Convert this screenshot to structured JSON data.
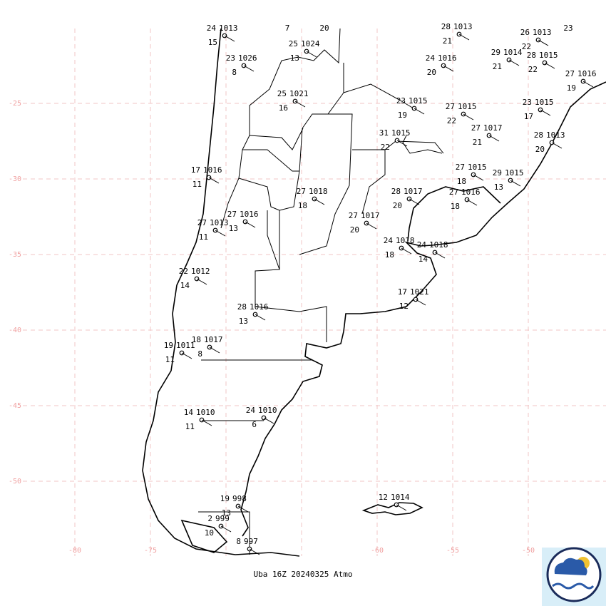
{
  "map": {
    "lat_labels": [
      -25,
      -30,
      -35,
      -40,
      -45,
      -50
    ],
    "lon_labels": [
      -80,
      -75,
      -60,
      -55,
      -50
    ],
    "footer": "Uba 16Z 20240325 Atmo",
    "stations": [
      {
        "t": "24",
        "p": "1013",
        "d": "15"
      },
      {
        "t": "23",
        "p": "1026",
        "d": "8"
      },
      {
        "t": "20"
      },
      {
        "t": "7"
      },
      {
        "t": "25",
        "p": "1024",
        "d": "13"
      },
      {
        "t": "25",
        "p": "1021",
        "d": "16"
      },
      {
        "t": "28",
        "p": "1013",
        "d": "21"
      },
      {
        "t": "24",
        "p": "1016",
        "d": "20"
      },
      {
        "t": "29",
        "p": "1014",
        "d": "21"
      },
      {
        "t": "26",
        "p": "1013",
        "d": "22"
      },
      {
        "t": "23"
      },
      {
        "t": "28",
        "p": "1015",
        "d": "22"
      },
      {
        "t": "27",
        "p": "1016",
        "d": "19"
      },
      {
        "t": "23",
        "p": "1015",
        "d": "19"
      },
      {
        "t": "27",
        "p": "1015",
        "d": "22"
      },
      {
        "t": "23",
        "p": "1015",
        "d": "17"
      },
      {
        "t": "31",
        "p": "1015",
        "d": "22"
      },
      {
        "t": "27",
        "p": "1017",
        "d": "21"
      },
      {
        "t": "28",
        "p": "1013",
        "d": "20"
      },
      {
        "t": "17",
        "p": "1016",
        "d": "11"
      },
      {
        "t": "27",
        "p": "1015",
        "d": "18"
      },
      {
        "t": "29",
        "p": "1015",
        "d": "13"
      },
      {
        "t": "27",
        "p": "1018",
        "d": "18"
      },
      {
        "t": "28",
        "p": "1017",
        "d": "20"
      },
      {
        "t": "27",
        "p": "1016",
        "d": "18"
      },
      {
        "t": "27",
        "p": "1016",
        "d": "13"
      },
      {
        "t": "27",
        "p": "1013",
        "d": "11"
      },
      {
        "t": "27",
        "p": "1017",
        "d": "20"
      },
      {
        "t": "24",
        "p": "1018",
        "d": "18"
      },
      {
        "t": "24",
        "p": "1018",
        "d": "14"
      },
      {
        "t": "22",
        "p": "1012",
        "d": "14"
      },
      {
        "t": "17",
        "p": "1021",
        "d": "12"
      },
      {
        "t": "28",
        "p": "1016",
        "d": "13"
      },
      {
        "t": "18",
        "p": "1017",
        "d": "8"
      },
      {
        "t": "19",
        "p": "1011",
        "d": "11"
      },
      {
        "t": "14",
        "p": "1010",
        "d": "11"
      },
      {
        "t": "24",
        "p": "1010",
        "d": "6"
      },
      {
        "t": "19",
        "p": "998",
        "d": "13"
      },
      {
        "t": "12",
        "p": "1014"
      },
      {
        "t": "2",
        "p": "999",
        "d": "10"
      },
      {
        "t": "8",
        "p": "997"
      }
    ]
  }
}
